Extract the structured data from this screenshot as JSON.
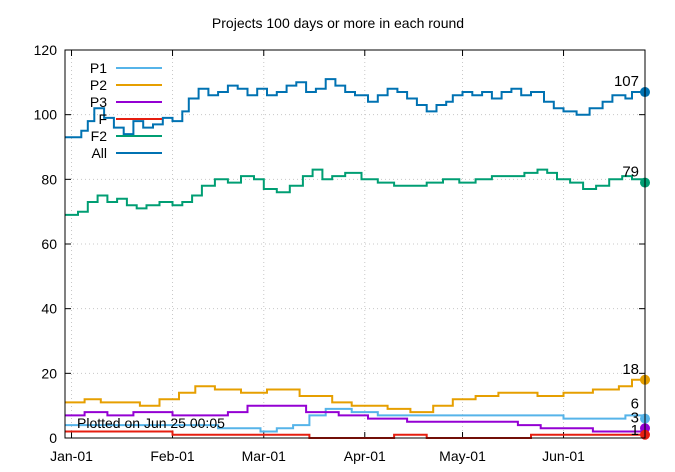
{
  "chart_data": {
    "type": "line",
    "title": "Projects 100 days or more in each round",
    "xlabel": "",
    "ylabel": "",
    "ylim": [
      0,
      120
    ],
    "yticks": [
      0,
      20,
      40,
      60,
      80,
      100,
      120
    ],
    "xlim": [
      "2020-12-30",
      "2021-06-26"
    ],
    "xticks": [
      {
        "date": "2021-01-01",
        "label": "Jan-01"
      },
      {
        "date": "2021-02-01",
        "label": "Feb-01"
      },
      {
        "date": "2021-03-01",
        "label": "Mar-01"
      },
      {
        "date": "2021-04-01",
        "label": "Apr-01"
      },
      {
        "date": "2021-05-01",
        "label": "May-01"
      },
      {
        "date": "2021-06-01",
        "label": "Jun-01"
      }
    ],
    "grid": true,
    "legend_position": "top-left",
    "step": true,
    "series": [
      {
        "name": "P1",
        "color": "#56b4e9",
        "end_label": "6",
        "points": [
          [
            "2020-12-30",
            4
          ],
          [
            "2021-01-20",
            4
          ],
          [
            "2021-02-15",
            3
          ],
          [
            "2021-02-28",
            2
          ],
          [
            "2021-03-05",
            3
          ],
          [
            "2021-03-10",
            4
          ],
          [
            "2021-03-15",
            7
          ],
          [
            "2021-03-20",
            9
          ],
          [
            "2021-03-28",
            8
          ],
          [
            "2021-04-05",
            7
          ],
          [
            "2021-04-18",
            7
          ],
          [
            "2021-04-25",
            7
          ],
          [
            "2021-05-10",
            7
          ],
          [
            "2021-05-25",
            7
          ],
          [
            "2021-06-01",
            6
          ],
          [
            "2021-06-10",
            6
          ],
          [
            "2021-06-20",
            7
          ],
          [
            "2021-06-25",
            6
          ]
        ]
      },
      {
        "name": "P2",
        "color": "#e69f00",
        "end_label": "18",
        "points": [
          [
            "2020-12-30",
            11
          ],
          [
            "2021-01-05",
            12
          ],
          [
            "2021-01-10",
            11
          ],
          [
            "2021-01-22",
            10
          ],
          [
            "2021-01-28",
            12
          ],
          [
            "2021-02-03",
            14
          ],
          [
            "2021-02-08",
            16
          ],
          [
            "2021-02-14",
            15
          ],
          [
            "2021-02-22",
            14
          ],
          [
            "2021-03-02",
            15
          ],
          [
            "2021-03-12",
            13
          ],
          [
            "2021-03-22",
            11
          ],
          [
            "2021-03-28",
            10
          ],
          [
            "2021-04-08",
            9
          ],
          [
            "2021-04-15",
            8
          ],
          [
            "2021-04-22",
            10
          ],
          [
            "2021-04-28",
            12
          ],
          [
            "2021-05-05",
            13
          ],
          [
            "2021-05-12",
            14
          ],
          [
            "2021-05-24",
            13
          ],
          [
            "2021-06-01",
            14
          ],
          [
            "2021-06-10",
            15
          ],
          [
            "2021-06-18",
            16
          ],
          [
            "2021-06-22",
            18
          ],
          [
            "2021-06-25",
            18
          ]
        ]
      },
      {
        "name": "P3",
        "color": "#9400d3",
        "end_label": "3",
        "points": [
          [
            "2020-12-30",
            7
          ],
          [
            "2021-01-05",
            8
          ],
          [
            "2021-01-12",
            7
          ],
          [
            "2021-01-20",
            8
          ],
          [
            "2021-02-01",
            7
          ],
          [
            "2021-02-12",
            7
          ],
          [
            "2021-02-18",
            8
          ],
          [
            "2021-02-24",
            10
          ],
          [
            "2021-03-04",
            10
          ],
          [
            "2021-03-14",
            8
          ],
          [
            "2021-03-24",
            7
          ],
          [
            "2021-04-02",
            6
          ],
          [
            "2021-04-14",
            5
          ],
          [
            "2021-04-24",
            5
          ],
          [
            "2021-05-06",
            5
          ],
          [
            "2021-05-18",
            4
          ],
          [
            "2021-05-25",
            3
          ],
          [
            "2021-06-01",
            3
          ],
          [
            "2021-06-10",
            2
          ],
          [
            "2021-06-20",
            2
          ],
          [
            "2021-06-25",
            3
          ]
        ]
      },
      {
        "name": "F",
        "color": "#e51e10",
        "end_label": "1",
        "points": [
          [
            "2020-12-30",
            2
          ],
          [
            "2021-01-15",
            2
          ],
          [
            "2021-02-01",
            1
          ],
          [
            "2021-02-20",
            1
          ],
          [
            "2021-03-15",
            0
          ],
          [
            "2021-04-10",
            1
          ],
          [
            "2021-04-20",
            0
          ],
          [
            "2021-05-10",
            0
          ],
          [
            "2021-05-22",
            1
          ],
          [
            "2021-06-05",
            1
          ],
          [
            "2021-06-15",
            1
          ],
          [
            "2021-06-25",
            1
          ]
        ]
      },
      {
        "name": "F2",
        "color": "#009e73",
        "end_label": "79",
        "points": [
          [
            "2020-12-30",
            69
          ],
          [
            "2021-01-03",
            70
          ],
          [
            "2021-01-06",
            73
          ],
          [
            "2021-01-09",
            75
          ],
          [
            "2021-01-12",
            73
          ],
          [
            "2021-01-15",
            74
          ],
          [
            "2021-01-18",
            72
          ],
          [
            "2021-01-21",
            71
          ],
          [
            "2021-01-24",
            72
          ],
          [
            "2021-01-28",
            73
          ],
          [
            "2021-02-01",
            72
          ],
          [
            "2021-02-04",
            73
          ],
          [
            "2021-02-07",
            75
          ],
          [
            "2021-02-10",
            78
          ],
          [
            "2021-02-14",
            80
          ],
          [
            "2021-02-18",
            79
          ],
          [
            "2021-02-22",
            81
          ],
          [
            "2021-02-26",
            80
          ],
          [
            "2021-03-01",
            77
          ],
          [
            "2021-03-05",
            76
          ],
          [
            "2021-03-09",
            78
          ],
          [
            "2021-03-13",
            81
          ],
          [
            "2021-03-16",
            83
          ],
          [
            "2021-03-19",
            80
          ],
          [
            "2021-03-22",
            81
          ],
          [
            "2021-03-26",
            82
          ],
          [
            "2021-03-31",
            80
          ],
          [
            "2021-04-05",
            79
          ],
          [
            "2021-04-10",
            78
          ],
          [
            "2021-04-15",
            78
          ],
          [
            "2021-04-20",
            79
          ],
          [
            "2021-04-25",
            80
          ],
          [
            "2021-04-30",
            79
          ],
          [
            "2021-05-05",
            80
          ],
          [
            "2021-05-10",
            81
          ],
          [
            "2021-05-15",
            81
          ],
          [
            "2021-05-20",
            82
          ],
          [
            "2021-05-24",
            83
          ],
          [
            "2021-05-27",
            82
          ],
          [
            "2021-05-30",
            80
          ],
          [
            "2021-06-03",
            79
          ],
          [
            "2021-06-07",
            77
          ],
          [
            "2021-06-11",
            78
          ],
          [
            "2021-06-15",
            80
          ],
          [
            "2021-06-19",
            81
          ],
          [
            "2021-06-22",
            80
          ],
          [
            "2021-06-25",
            79
          ]
        ]
      },
      {
        "name": "All",
        "color": "#0072b2",
        "end_label": "107",
        "points": [
          [
            "2020-12-30",
            93
          ],
          [
            "2021-01-04",
            95
          ],
          [
            "2021-01-06",
            98
          ],
          [
            "2021-01-08",
            102
          ],
          [
            "2021-01-11",
            99
          ],
          [
            "2021-01-14",
            96
          ],
          [
            "2021-01-17",
            94
          ],
          [
            "2021-01-20",
            98
          ],
          [
            "2021-01-23",
            96
          ],
          [
            "2021-01-26",
            97
          ],
          [
            "2021-01-29",
            99
          ],
          [
            "2021-02-01",
            98
          ],
          [
            "2021-02-04",
            101
          ],
          [
            "2021-02-06",
            105
          ],
          [
            "2021-02-09",
            108
          ],
          [
            "2021-02-12",
            106
          ],
          [
            "2021-02-15",
            107
          ],
          [
            "2021-02-18",
            109
          ],
          [
            "2021-02-21",
            108
          ],
          [
            "2021-02-24",
            106
          ],
          [
            "2021-02-27",
            108
          ],
          [
            "2021-03-02",
            106
          ],
          [
            "2021-03-05",
            107
          ],
          [
            "2021-03-08",
            109
          ],
          [
            "2021-03-11",
            110
          ],
          [
            "2021-03-14",
            107
          ],
          [
            "2021-03-17",
            108
          ],
          [
            "2021-03-20",
            111
          ],
          [
            "2021-03-23",
            109
          ],
          [
            "2021-03-26",
            107
          ],
          [
            "2021-03-29",
            106
          ],
          [
            "2021-04-02",
            104
          ],
          [
            "2021-04-05",
            106
          ],
          [
            "2021-04-08",
            108
          ],
          [
            "2021-04-11",
            107
          ],
          [
            "2021-04-14",
            105
          ],
          [
            "2021-04-17",
            103
          ],
          [
            "2021-04-20",
            101
          ],
          [
            "2021-04-23",
            103
          ],
          [
            "2021-04-26",
            104
          ],
          [
            "2021-04-28",
            106
          ],
          [
            "2021-05-01",
            107
          ],
          [
            "2021-05-04",
            106
          ],
          [
            "2021-05-07",
            107
          ],
          [
            "2021-05-10",
            105
          ],
          [
            "2021-05-13",
            107
          ],
          [
            "2021-05-16",
            108
          ],
          [
            "2021-05-19",
            106
          ],
          [
            "2021-05-22",
            107
          ],
          [
            "2021-05-26",
            104
          ],
          [
            "2021-05-29",
            102
          ],
          [
            "2021-06-01",
            101
          ],
          [
            "2021-06-05",
            100
          ],
          [
            "2021-06-09",
            102
          ],
          [
            "2021-06-13",
            104
          ],
          [
            "2021-06-16",
            106
          ],
          [
            "2021-06-20",
            105
          ],
          [
            "2021-06-22",
            107
          ],
          [
            "2021-06-25",
            107
          ]
        ]
      }
    ],
    "annotation": "Plotted on Jun 25 00:05"
  }
}
